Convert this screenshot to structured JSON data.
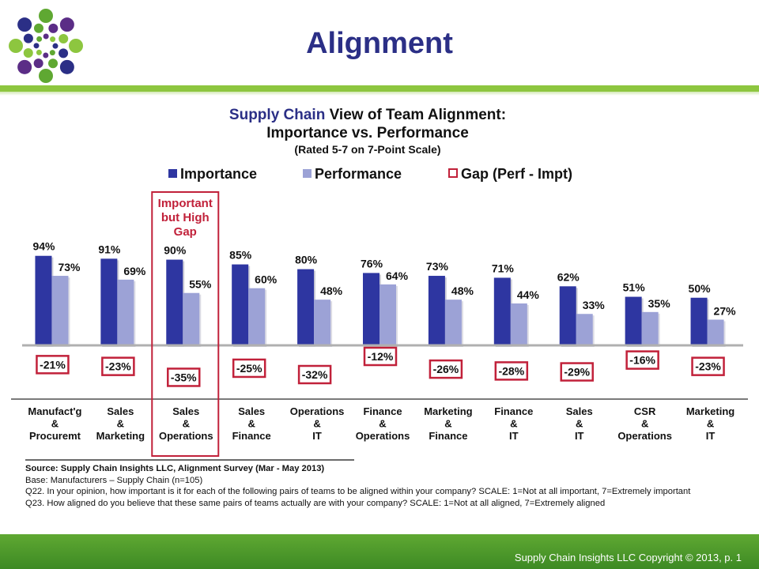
{
  "slide": {
    "title": "Alignment",
    "footer": "Supply Chain Insights LLC Copyright © 2013, p. 1"
  },
  "colors": {
    "importance": "#2e36a1",
    "performance": "#9ca2d6",
    "gap_border": "#c1213a",
    "title_blue": "#2b2f86",
    "accent_green": "#8dc63f"
  },
  "chart_data": {
    "type": "bar",
    "title_highlight": "Supply Chain",
    "title_rest": " View of Team Alignment:",
    "title_line2": "Importance vs. Performance",
    "subtitle": "(Rated 5-7 on 7-Point Scale)",
    "legend_placement": "top",
    "grid": false,
    "ylim": [
      0,
      100
    ],
    "categories": [
      [
        "Manufact'g",
        "&",
        "Procuremt"
      ],
      [
        "Sales",
        "&",
        "Marketing"
      ],
      [
        "Sales",
        "&",
        "Operations"
      ],
      [
        "Sales",
        "&",
        "Finance"
      ],
      [
        "Operations",
        "&",
        "IT"
      ],
      [
        "Finance",
        "&",
        "Operations"
      ],
      [
        "Marketing",
        "&",
        "Finance"
      ],
      [
        "Finance",
        "&",
        "IT"
      ],
      [
        "Sales",
        "&",
        "IT"
      ],
      [
        "CSR",
        "&",
        "Operations"
      ],
      [
        "Marketing",
        "&",
        "IT"
      ]
    ],
    "series": [
      {
        "name": "Importance",
        "values": [
          94,
          91,
          90,
          85,
          80,
          76,
          73,
          71,
          62,
          51,
          50
        ],
        "labels": [
          "94%",
          "91%",
          "90%",
          "85%",
          "80%",
          "76%",
          "73%",
          "71%",
          "62%",
          "51%",
          "50%"
        ]
      },
      {
        "name": "Performance",
        "values": [
          73,
          69,
          55,
          60,
          48,
          64,
          48,
          44,
          33,
          35,
          27
        ],
        "labels": [
          "73%",
          "69%",
          "55%",
          "60%",
          "48%",
          "64%",
          "48%",
          "44%",
          "33%",
          "35%",
          "27%"
        ]
      },
      {
        "name": "Gap (Perf - Impt)",
        "values": [
          -21,
          -23,
          -35,
          -25,
          -32,
          -12,
          -26,
          -28,
          -29,
          -16,
          -23
        ],
        "labels": [
          "-21%",
          "-23%",
          "-35%",
          "-25%",
          "-32%",
          "-12%",
          "-26%",
          "-28%",
          "-29%",
          "-16%",
          "-23%"
        ]
      }
    ],
    "annotation": {
      "lines": [
        "Important",
        "but High",
        "Gap"
      ],
      "category_index": 2
    }
  },
  "source": {
    "line1": "Source:  Supply Chain Insights LLC, Alignment Survey  (Mar - May 2013)",
    "line2": "Base:  Manufacturers   – Supply Chain (n=105)",
    "line3": "Q22. In your opinion, how important is it for each of the following pairs of teams to be aligned within your company?  SCALE:  1=Not at all important, 7=Extremely important",
    "line4": "Q23. How aligned do you believe that these same pairs of teams actually are with your company?  SCALE: 1=Not at all aligned, 7=Extremely aligned"
  }
}
